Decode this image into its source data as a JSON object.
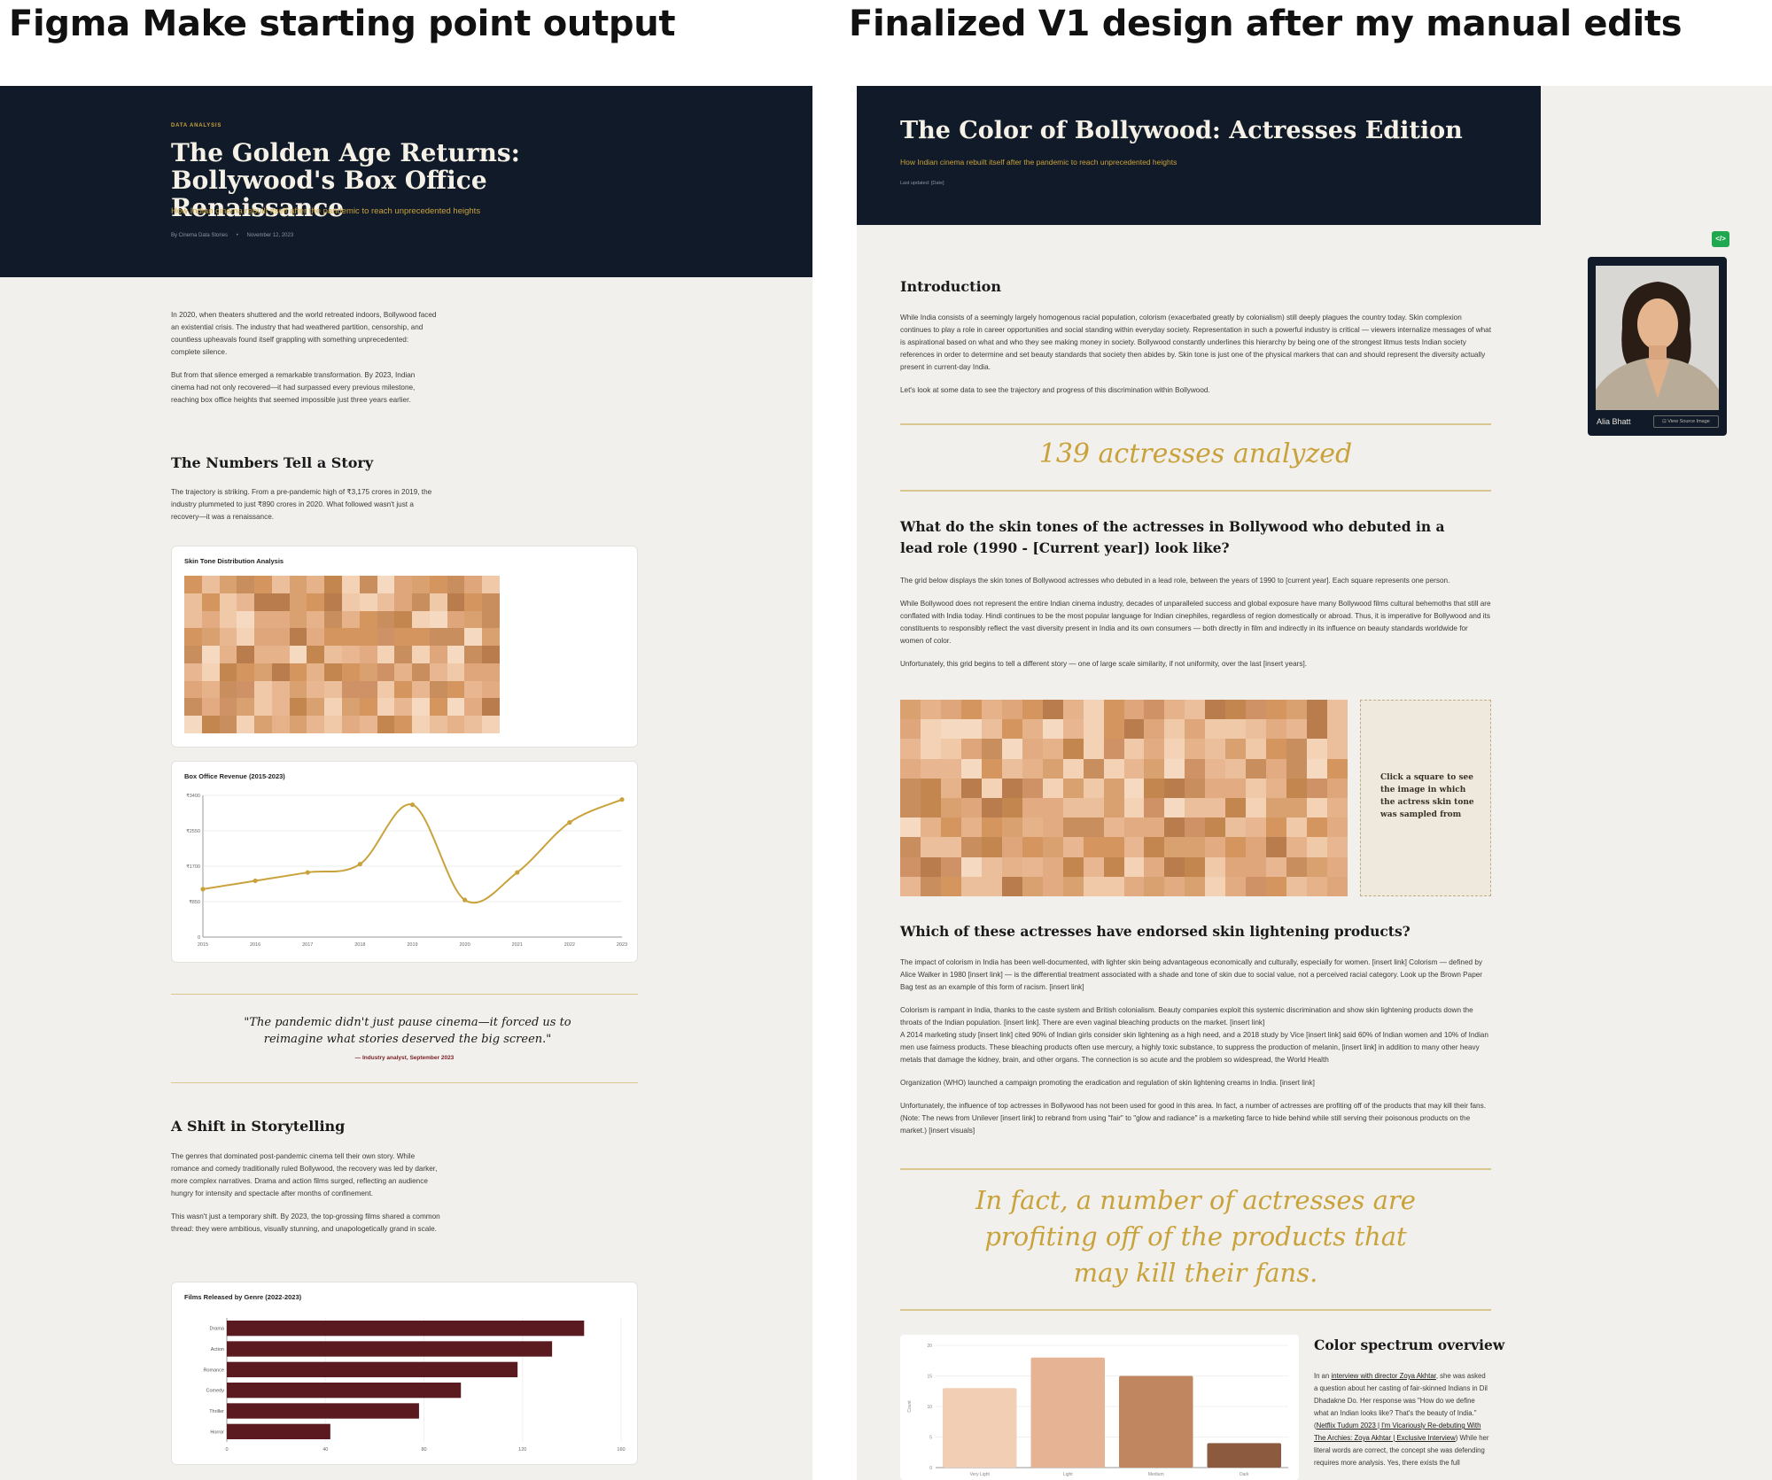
{
  "headings": {
    "left": "Figma Make starting point output",
    "right": "Finalized V1 design after my manual edits"
  },
  "left": {
    "kicker": "DATA ANALYSIS",
    "title": "The Golden Age Returns: Bollywood's Box Office Renaissance",
    "subtitle": "How Indian cinema rebuilt itself after the pandemic to reach unprecedented heights",
    "byline": "By Cinema Data Stories",
    "dot": "•",
    "date": "November 12, 2023",
    "intro_p1": "In 2020, when theaters shuttered and the world retreated indoors, Bollywood faced an existential crisis. The industry that had weathered partition, censorship, and countless upheavals found itself grappling with something unprecedented: complete silence.",
    "intro_p2": "But from that silence emerged a remarkable transformation. By 2023, Indian cinema had not only recovered—it had surpassed every previous milestone, reaching box office heights that seemed impossible just three years earlier.",
    "section1_title": "The Numbers Tell a Story",
    "section1_p": "The trajectory is striking. From a pre-pandemic high of ₹3,175 crores in 2019, the industry plummeted to just ₹890 crores in 2020. What followed wasn't just a recovery—it was a renaissance.",
    "mosaic_title": "Skin Tone Distribution Analysis",
    "quote": "\"The pandemic didn't just pause cinema—it forced us to reimagine what stories deserved the big screen.\"",
    "quote_attr": "— Industry analyst, September 2023",
    "section2_title": "A Shift in Storytelling",
    "section2_p1": "The genres that dominated post-pandemic cinema tell their own story. While romance and comedy traditionally ruled Bollywood, the recovery was led by darker, more complex narratives. Drama and action films surged, reflecting an audience hungry for intensity and spectacle after months of confinement.",
    "section2_p2": "This wasn't just a temporary shift. By 2023, the top-grossing films shared a common thread: they were ambitious, visually stunning, and unapologetically grand in scale."
  },
  "right": {
    "title": "The Color of Bollywood: Actresses Edition",
    "subtitle": "How Indian cinema rebuilt itself after the pandemic to reach unprecedented heights",
    "updated": "Last updated: [Date]",
    "intro_title": "Introduction",
    "intro_p1": "While India consists of a seemingly largely homogenous racial population, colorism (exacerbated greatly by colonialism) still deeply plagues the country today. Skin complexion continues to play a role in career opportunities and social standing within everyday society. Representation in such a powerful industry is critical — viewers internalize messages of what is aspirational based on what and who they see making money in society. Bollywood constantly underlines this hierarchy by being one of the strongest litmus tests Indian society references in order to determine and set beauty standards that society then abides by. Skin tone is just one of the physical markers that can and should represent the diversity actually present in current-day India.",
    "intro_p2": "Let's look at some data to see the trajectory and progress of this discrimination within Bollywood.",
    "stat": "139 actresses analyzed",
    "q1": "What do the skin tones of the actresses in Bollywood who debuted in a lead role (1990 - [Current year]) look like?",
    "q1_p1": "The grid below displays the skin tones of Bollywood actresses who debuted in a lead role, between the years of 1990 to [current year]. Each square represents one person.",
    "q1_p2": "While Bollywood does not represent the entire Indian cinema industry, decades of unparalleled success and global exposure have many Bollywood films cultural behemoths that still are conflated with India today. Hindi continues to be the most popular language for Indian cinephiles, regardless of region domestically or abroad. Thus, it is imperative for Bollywood and its constituents to responsibly reflect the vast diversity present in India and its own consumers — both directly in film and indirectly in its influence on beauty standards worldwide for women of color.",
    "q1_p3": "Unfortunately, this grid begins to tell a different story — one of large scale similarity, if not uniformity, over the last [insert years].",
    "click_hint": "Click a square to see the image in which the actress skin tone was sampled from",
    "q2": "Which of these actresses have endorsed skin lightening products?",
    "q2_p1": "The impact of colorism in India has been well-documented, with lighter skin being advantageous economically and culturally, especially for women. [insert link] Colorism — defined by Alice Walker in 1980 [insert link] — is the differential treatment associated with a shade and tone of skin due to social value, not a perceived racial category. Look up the Brown Paper Bag test as an example of this form of racism. [insert link]",
    "q2_p2": "Colorism is rampant in India, thanks to the caste system and British colonialism. Beauty companies exploit this systemic discrimination and show skin lightening products down the throats of the Indian population. [insert link]. There are even vaginal bleaching products on the market. [insert link]",
    "q2_p3": "A 2014 marketing study [insert link] cited 90% of Indian girls consider skin lightening as a high need, and a 2018 study by Vice [insert link] said 60% of Indian women and 10% of Indian men use fairness products. These bleaching products often use mercury, a highly toxic substance, to suppress the production of melanin, [insert link] in addition to many other heavy metals that damage the kidney, brain, and other organs. The connection is so acute and the problem so widespread, the World Health",
    "q2_p4": "Organization (WHO) launched a campaign promoting the eradication and regulation of skin lightening creams in India. [insert link]",
    "q2_p5": "Unfortunately, the influence of top actresses in Bollywood has not been used for good in this area. In fact, a number of actresses are profiting off of the products that may kill their fans. (Note: The news from Unilever [insert link] to rebrand from using \"fair\" to \"glow and radiance\" is a marketing farce to hide behind while still serving their poisonous products on the market.) [insert visuals]",
    "pull_quote": "In fact, a number of actresses are profiting off of the products that may kill their fans.",
    "spectrum_title": "Color spectrum overview",
    "spectrum_p_pre": "In an ",
    "spectrum_link1": "interview with director Zoya Akhtar",
    "spectrum_p_mid": ", she was asked a question about her casting of fair-skinned Indians in Dil Dhadakne Do. Her response was \"How do we define what an Indian looks like? That's the beauty of India.\" (",
    "spectrum_link2": "Netflix Tudum 2023 | I'm Vicariously Re-debuting With The Archies: Zoya Akhtar | Exclusive Interview",
    "spectrum_p_post": ") While her literal words are correct, the concept she was defending requires more analysis. Yes, there exists the full",
    "actress_name": "Alia Bhatt",
    "view_source": "View Source Image",
    "code_icon_glyph": "</>"
  },
  "colors": {
    "hero_bg": "#111a28",
    "gold": "#c9a23b",
    "maroon": "#5a1a1f",
    "panel_bg": "#f1f0ec"
  },
  "chart_data": [
    {
      "type": "heatmap",
      "title": "Skin Tone Distribution Analysis",
      "cells": 126
    },
    {
      "type": "line",
      "title": "Box Office Revenue (2015-2023)",
      "x": [
        "2015",
        "2016",
        "2017",
        "2018",
        "2019",
        "2020",
        "2021",
        "2022",
        "2023"
      ],
      "values": [
        1150,
        1350,
        1550,
        1750,
        3175,
        890,
        1550,
        2750,
        3300
      ],
      "y_ticks": [
        "0",
        "₹850",
        "₹1700",
        "₹2550",
        "₹3400"
      ],
      "ylim": [
        0,
        3400
      ],
      "color": "#c9a23b"
    },
    {
      "type": "bar",
      "orientation": "horizontal",
      "title": "Films Released by Genre (2022-2023)",
      "categories": [
        "Drama",
        "Action",
        "Romance",
        "Comedy",
        "Thriller",
        "Horror"
      ],
      "values": [
        145,
        132,
        118,
        95,
        78,
        42
      ],
      "x_ticks": [
        "0",
        "40",
        "80",
        "120",
        "160"
      ],
      "xlim": [
        0,
        160
      ],
      "color": "#5a1a1f"
    },
    {
      "type": "bar",
      "title": "Color spectrum overview",
      "categories": [
        "Very Light",
        "Light",
        "Medium",
        "Dark"
      ],
      "values": [
        13,
        18,
        15,
        4
      ],
      "y_ticks": [
        "0",
        "5",
        "10",
        "15",
        "20"
      ],
      "ylim": [
        0,
        20
      ],
      "ylabel": "Count",
      "colors": [
        "#f2cfb4",
        "#e6b394",
        "#c08660",
        "#8b5a3f"
      ]
    }
  ]
}
